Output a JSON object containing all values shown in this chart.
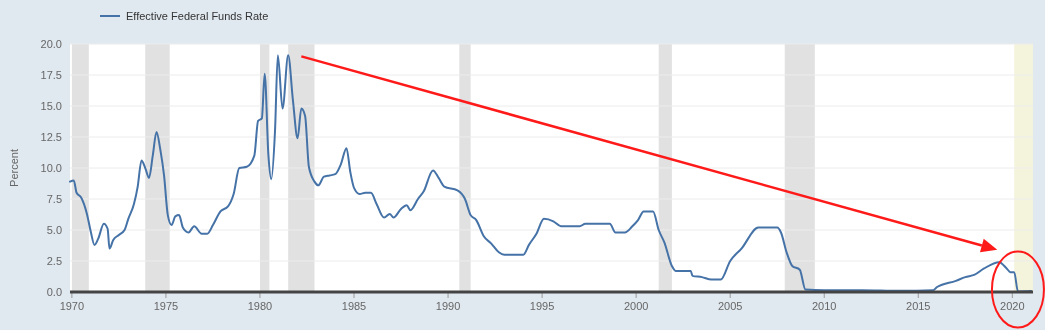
{
  "chart_data": {
    "type": "line",
    "ylabel": "Percent",
    "legend": "top left",
    "grid": "y",
    "xlim": [
      1969.9,
      2021.1
    ],
    "xticks": [
      1970,
      1975,
      1980,
      1985,
      1990,
      1995,
      2000,
      2005,
      2010,
      2015,
      2020
    ],
    "ylim": [
      0,
      20
    ],
    "yticks": [
      {
        "value": 0,
        "label": "0.0"
      },
      {
        "value": 2.5,
        "label": "2.5"
      },
      {
        "value": 5,
        "label": "5.0"
      },
      {
        "value": 7.5,
        "label": "7.5"
      },
      {
        "value": 10,
        "label": "10.0"
      },
      {
        "value": 12.5,
        "label": "12.5"
      },
      {
        "value": 15,
        "label": "15.0"
      },
      {
        "value": 17.5,
        "label": "17.5"
      },
      {
        "value": 20,
        "label": "20.0"
      }
    ],
    "bands": [
      {
        "axis": "x",
        "from": 1970.0,
        "to": 1970.9,
        "color": "#e1e1e1"
      },
      {
        "axis": "x",
        "from": 1973.9,
        "to": 1975.2,
        "color": "#e1e1e1"
      },
      {
        "axis": "x",
        "from": 1980.0,
        "to": 1980.5,
        "color": "#e1e1e1"
      },
      {
        "axis": "x",
        "from": 1981.5,
        "to": 1982.9,
        "color": "#e1e1e1"
      },
      {
        "axis": "x",
        "from": 1990.6,
        "to": 1991.2,
        "color": "#e1e1e1"
      },
      {
        "axis": "x",
        "from": 2001.2,
        "to": 2001.9,
        "color": "#e1e1e1"
      },
      {
        "axis": "x",
        "from": 2007.9,
        "to": 2009.5,
        "color": "#e1e1e1"
      },
      {
        "axis": "x",
        "from": 2020.1,
        "to": 2021.1,
        "color": "#f4f4dc"
      }
    ],
    "series": [
      {
        "name": "Effective Federal Funds Rate",
        "color": "#4572a7",
        "x": [
          1969.9,
          1970.1,
          1970.25,
          1970.5,
          1970.8,
          1971.0,
          1971.2,
          1971.4,
          1971.7,
          1971.9,
          1972.0,
          1972.2,
          1972.5,
          1972.8,
          1973.0,
          1973.3,
          1973.5,
          1973.7,
          1973.9,
          1974.1,
          1974.3,
          1974.5,
          1974.7,
          1974.9,
          1975.1,
          1975.3,
          1975.5,
          1975.7,
          1975.9,
          1976.2,
          1976.5,
          1976.9,
          1977.2,
          1977.5,
          1977.9,
          1978.3,
          1978.6,
          1978.9,
          1979.3,
          1979.7,
          1979.9,
          1980.1,
          1980.25,
          1980.45,
          1980.6,
          1980.8,
          1980.95,
          1981.2,
          1981.5,
          1981.75,
          1982.0,
          1982.2,
          1982.4,
          1982.6,
          1982.9,
          1983.1,
          1983.4,
          1983.7,
          1984.0,
          1984.3,
          1984.6,
          1984.8,
          1985.0,
          1985.3,
          1985.6,
          1985.9,
          1986.2,
          1986.6,
          1986.9,
          1987.1,
          1987.5,
          1987.8,
          1988.0,
          1988.4,
          1988.7,
          1989.2,
          1989.5,
          1989.8,
          1990.5,
          1990.9,
          1991.2,
          1991.5,
          1991.9,
          1992.3,
          1992.7,
          1993.0,
          1993.5,
          1994.0,
          1994.3,
          1994.7,
          1995.1,
          1995.6,
          1996.0,
          1996.5,
          1997.0,
          1997.3,
          1998.3,
          1998.6,
          1998.9,
          1999.4,
          1999.8,
          2000.1,
          2000.4,
          2000.9,
          2001.2,
          2001.5,
          2001.9,
          2002.1,
          2002.9,
          2003.0,
          2003.5,
          2004.0,
          2004.5,
          2005.0,
          2005.6,
          2006.5,
          2007.5,
          2007.7,
          2008.0,
          2008.3,
          2008.7,
          2009.0,
          2010.0,
          2012.0,
          2014.0,
          2015.8,
          2016.0,
          2017.0,
          2017.5,
          2018.0,
          2018.5,
          2019.3,
          2019.7,
          2019.9,
          2020.1,
          2020.3,
          2021.0
        ],
        "values": [
          8.9,
          9.0,
          8.0,
          7.6,
          6.3,
          4.9,
          3.8,
          4.3,
          5.5,
          5.1,
          3.5,
          4.2,
          4.6,
          5.0,
          5.9,
          7.1,
          8.5,
          10.6,
          10.0,
          9.2,
          11.0,
          12.9,
          11.5,
          9.4,
          6.2,
          5.4,
          6.1,
          6.2,
          5.2,
          4.8,
          5.3,
          4.7,
          4.7,
          5.4,
          6.5,
          6.9,
          7.9,
          10.0,
          10.1,
          11.0,
          13.8,
          14.0,
          17.6,
          11.0,
          9.1,
          13.0,
          19.1,
          14.8,
          19.1,
          15.5,
          12.4,
          14.8,
          14.2,
          10.1,
          8.9,
          8.6,
          9.3,
          9.4,
          9.5,
          10.3,
          11.6,
          9.7,
          8.4,
          7.9,
          8.0,
          8.0,
          7.1,
          6.0,
          6.3,
          6.0,
          6.7,
          7.0,
          6.6,
          7.5,
          8.1,
          9.8,
          9.2,
          8.5,
          8.2,
          7.5,
          6.2,
          5.8,
          4.5,
          3.9,
          3.2,
          3.0,
          3.0,
          3.0,
          3.8,
          4.7,
          5.9,
          5.7,
          5.3,
          5.3,
          5.3,
          5.5,
          5.5,
          5.5,
          4.8,
          4.8,
          5.3,
          5.8,
          6.5,
          6.5,
          5.0,
          4.0,
          2.1,
          1.7,
          1.7,
          1.3,
          1.2,
          1.0,
          1.0,
          2.5,
          3.5,
          5.2,
          5.2,
          4.8,
          3.2,
          2.1,
          1.8,
          0.2,
          0.15,
          0.15,
          0.1,
          0.15,
          0.4,
          0.9,
          1.2,
          1.4,
          1.9,
          2.4,
          1.9,
          1.6,
          1.6,
          0.05,
          0.08
        ]
      }
    ]
  }
}
